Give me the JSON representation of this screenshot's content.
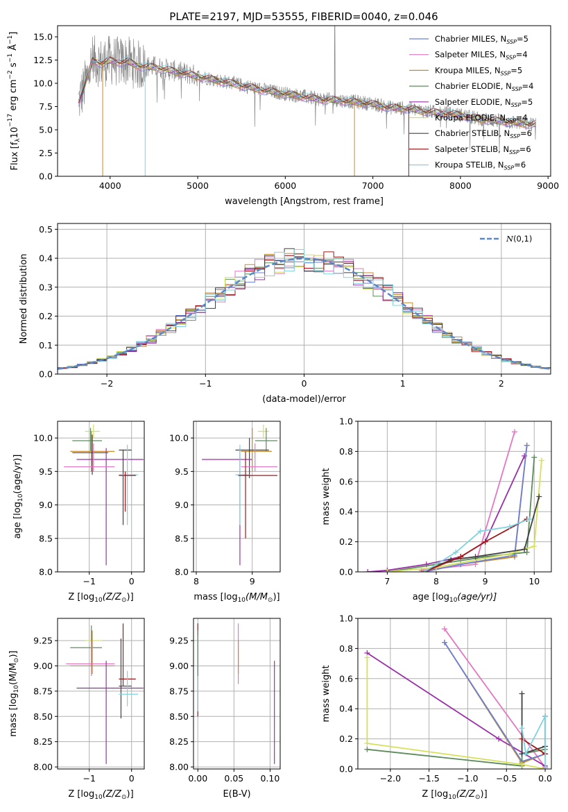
{
  "figure": {
    "title": "PLATE=2197, MJD=53555, FIBERID=0040, z=0.046"
  },
  "chart_data": [
    {
      "id": "spectrum",
      "type": "line",
      "title": "PLATE=2197, MJD=53555, FIBERID=0040, z=0.046",
      "xlabel": "wavelength [Angstrom, rest frame]",
      "ylabel_parts": [
        "Flux [f",
        "λ",
        "10",
        "−17",
        " erg cm",
        "−2",
        " s",
        "−1",
        " Å",
        "−1",
        "]"
      ],
      "xlim": [
        3400,
        9030
      ],
      "ylim": [
        0,
        16.2
      ],
      "xticks": [
        4000,
        5000,
        6000,
        7000,
        8000,
        9000
      ],
      "yticks": [
        0.0,
        2.5,
        5.0,
        7.5,
        10.0,
        12.5,
        15.0
      ],
      "grid": false,
      "legend_position": "upper-right",
      "observed": {
        "x": [
          3640,
          3700,
          3800,
          3900,
          4000,
          4100,
          4200,
          4300,
          4400,
          4500,
          4600,
          4700,
          4800,
          4900,
          5000,
          5200,
          5400,
          5600,
          5800,
          6000,
          6200,
          6400,
          6600,
          6800,
          7000,
          7200,
          7400,
          7600,
          7800,
          8000,
          8200,
          8400,
          8600,
          8800
        ],
        "y": [
          8.0,
          9.5,
          12.5,
          12.2,
          12.5,
          12.3,
          12.4,
          12.0,
          11.8,
          11.8,
          11.6,
          11.4,
          11.2,
          11.0,
          10.8,
          10.4,
          10.0,
          9.6,
          9.2,
          8.9,
          8.6,
          8.3,
          8.2,
          8.0,
          7.8,
          7.4,
          7.3,
          7.0,
          6.8,
          6.6,
          6.2,
          6.0,
          5.8,
          5.6
        ]
      },
      "series": [
        {
          "name": "Chabrier MILES, N",
          "sub": "SSP",
          "suffix": "=5",
          "color": "#6b7fd7"
        },
        {
          "name": "Salpeter MILES, N",
          "sub": "SSP",
          "suffix": "=4",
          "color": "#e377c2"
        },
        {
          "name": "Kroupa MILES, N",
          "sub": "SSP",
          "suffix": "=5",
          "color": "#c88a2a"
        },
        {
          "name": "Chabrier ELODIE, N",
          "sub": "SSP",
          "suffix": "=4",
          "color": "#5b8c5a"
        },
        {
          "name": "Salpeter ELODIE, N",
          "sub": "SSP",
          "suffix": "=5",
          "color": "#9b2ea8"
        },
        {
          "name": "Kroupa ELODIE, N",
          "sub": "SSP",
          "suffix": "=4",
          "color": "#d4e157"
        },
        {
          "name": "Chabrier STELIB, N",
          "sub": "SSP",
          "suffix": "=6",
          "color": "#404040"
        },
        {
          "name": "Salpeter STELIB, N",
          "sub": "SSP",
          "suffix": "=6",
          "color": "#a01818"
        },
        {
          "name": "Kroupa STELIB, N",
          "sub": "SSP",
          "suffix": "=6",
          "color": "#7fd3e0"
        }
      ]
    },
    {
      "id": "residuals",
      "type": "histogram",
      "xlabel": "(data-model)/error",
      "ylabel": "Normed distribution",
      "xlim": [
        -2.5,
        2.5
      ],
      "ylim": [
        0,
        0.52
      ],
      "xticks": [
        -2,
        -1,
        0,
        1,
        2
      ],
      "xticklabels": [
        "−2",
        "−1",
        "0",
        "1",
        "2"
      ],
      "yticks": [
        0.0,
        0.1,
        0.2,
        0.3,
        0.4,
        0.5
      ],
      "grid": true,
      "legend_position": "upper-right",
      "legend_label": "N(0,1)",
      "bin_width": 0.1,
      "colors": [
        "#6b7fd7",
        "#e377c2",
        "#c88a2a",
        "#5b8c5a",
        "#9b2ea8",
        "#d4e157",
        "#404040",
        "#a01818",
        "#7fd3e0"
      ]
    },
    {
      "id": "age-vs-Z",
      "type": "errorbar",
      "xlabel_parts": [
        "Z [log",
        "10",
        "(Z/Z",
        "⊙",
        ")]"
      ],
      "ylabel_parts": [
        "age  [log",
        "10",
        "(age/yr)]"
      ],
      "xlim": [
        -1.75,
        0.3
      ],
      "ylim": [
        8.0,
        10.25
      ],
      "xticks": [
        -1,
        0
      ],
      "xticklabels": [
        "−1",
        "0"
      ],
      "yticks": [
        8.0,
        8.5,
        9.0,
        9.5,
        10.0
      ],
      "grid": true,
      "points": [
        {
          "x": -0.9,
          "y": 10.1,
          "xlo": -1.1,
          "xhi": -0.75,
          "ylo": 10.0,
          "yhi": 10.2,
          "color": "#d4e157"
        },
        {
          "x": -0.97,
          "y": 9.96,
          "xlo": -1.4,
          "xhi": -0.7,
          "ylo": 9.8,
          "yhi": 10.15,
          "color": "#5b8c5a"
        },
        {
          "x": -0.95,
          "y": 9.8,
          "xlo": -1.45,
          "xhi": -0.4,
          "ylo": 9.5,
          "yhi": 10.1,
          "color": "#c88a2a"
        },
        {
          "x": -0.93,
          "y": 9.78,
          "xlo": -1.4,
          "xhi": -0.55,
          "ylo": 9.45,
          "yhi": 10.05,
          "color": "#404040"
        },
        {
          "x": -0.6,
          "y": 9.68,
          "xlo": -1.3,
          "xhi": 0.28,
          "ylo": 8.1,
          "yhi": 9.85,
          "color": "#9b2ea8"
        },
        {
          "x": -0.9,
          "y": 9.57,
          "xlo": -1.6,
          "xhi": -0.4,
          "ylo": 9.5,
          "yhi": 9.92,
          "color": "#e377c2"
        },
        {
          "x": -0.2,
          "y": 9.82,
          "xlo": -0.3,
          "xhi": 0.0,
          "ylo": 8.7,
          "yhi": 9.82,
          "color": "#404040"
        },
        {
          "x": -0.1,
          "y": 9.45,
          "xlo": -0.3,
          "xhi": 0.15,
          "ylo": 8.7,
          "yhi": 9.9,
          "color": "#7fd3e0"
        },
        {
          "x": -0.15,
          "y": 9.44,
          "xlo": -0.3,
          "xhi": 0.1,
          "ylo": 8.9,
          "yhi": 9.5,
          "color": "#a01818"
        }
      ]
    },
    {
      "id": "age-vs-mass",
      "type": "errorbar",
      "xlabel_parts": [
        "mass [log",
        "10",
        "(M/M",
        "⊙",
        ")]"
      ],
      "ylabel": "",
      "xlim": [
        7.95,
        9.5
      ],
      "ylim": [
        8.0,
        10.25
      ],
      "xticks": [
        8,
        9
      ],
      "yticks": [
        8.0,
        8.5,
        9.0,
        9.5,
        10.0
      ],
      "grid": true,
      "points": [
        {
          "x": 9.2,
          "y": 10.1,
          "xlo": 9.1,
          "xhi": 9.3,
          "ylo": 10.0,
          "yhi": 10.2,
          "color": "#d4e157"
        },
        {
          "x": 9.25,
          "y": 9.96,
          "xlo": 9.05,
          "xhi": 9.45,
          "ylo": 9.8,
          "yhi": 10.15,
          "color": "#5b8c5a"
        },
        {
          "x": 9.0,
          "y": 9.8,
          "xlo": 8.8,
          "xhi": 9.35,
          "ylo": 9.5,
          "yhi": 10.15,
          "color": "#c88a2a"
        },
        {
          "x": 8.95,
          "y": 9.82,
          "xlo": 8.7,
          "xhi": 9.3,
          "ylo": 9.4,
          "yhi": 10.0,
          "color": "#404040"
        },
        {
          "x": 8.78,
          "y": 9.68,
          "xlo": 8.1,
          "xhi": 9.0,
          "ylo": 8.1,
          "yhi": 9.85,
          "color": "#9b2ea8"
        },
        {
          "x": 9.05,
          "y": 9.57,
          "xlo": 8.8,
          "xhi": 9.45,
          "ylo": 9.5,
          "yhi": 9.92,
          "color": "#e377c2"
        },
        {
          "x": 8.78,
          "y": 9.45,
          "xlo": 8.7,
          "xhi": 8.95,
          "ylo": 8.7,
          "yhi": 9.9,
          "color": "#7fd3e0"
        },
        {
          "x": 8.88,
          "y": 9.44,
          "xlo": 8.75,
          "xhi": 9.45,
          "ylo": 8.5,
          "yhi": 9.8,
          "color": "#a01818"
        }
      ]
    },
    {
      "id": "weight-vs-age",
      "type": "line",
      "xlabel_parts": [
        "age  [log",
        "10",
        "(age/yr)]"
      ],
      "ylabel": "mass weight",
      "xlim": [
        6.4,
        10.35
      ],
      "ylim": [
        0,
        1.0
      ],
      "xticks": [
        7,
        8,
        9,
        10
      ],
      "yticks": [
        0.0,
        0.2,
        0.4,
        0.6,
        0.8,
        1.0
      ],
      "grid": true,
      "series": [
        {
          "color": "#e377c2",
          "x": [
            7.7,
            8.8,
            9.6
          ],
          "y": [
            0.01,
            0.05,
            0.93
          ]
        },
        {
          "color": "#9b2ea8",
          "x": [
            6.6,
            7.0,
            7.8,
            8.5,
            9.0,
            9.8
          ],
          "y": [
            0.0,
            0.01,
            0.05,
            0.1,
            0.2,
            0.77
          ]
        },
        {
          "color": "#c88a2a",
          "x": [
            7.7,
            8.5,
            9.6,
            9.85
          ],
          "y": [
            0.0,
            0.05,
            0.1,
            0.84
          ]
        },
        {
          "color": "#6b7fd7",
          "x": [
            7.75,
            8.5,
            9.6,
            9.85
          ],
          "y": [
            0.0,
            0.05,
            0.11,
            0.84
          ]
        },
        {
          "color": "#5b8c5a",
          "x": [
            7.0,
            8.0,
            9.0,
            9.85,
            10.0
          ],
          "y": [
            0.0,
            0.05,
            0.1,
            0.13,
            0.76
          ]
        },
        {
          "color": "#d4e157",
          "x": [
            7.0,
            8.0,
            9.5,
            10.0,
            10.15
          ],
          "y": [
            0.0,
            0.03,
            0.12,
            0.17,
            0.74
          ]
        },
        {
          "color": "#404040",
          "x": [
            7.75,
            8.3,
            8.8,
            9.8,
            10.1
          ],
          "y": [
            0.0,
            0.08,
            0.1,
            0.15,
            0.5
          ]
        },
        {
          "color": "#a01818",
          "x": [
            7.75,
            8.5,
            9.0,
            9.85
          ],
          "y": [
            0.0,
            0.1,
            0.2,
            0.35
          ]
        },
        {
          "color": "#7fd3e0",
          "x": [
            7.75,
            8.4,
            8.9,
            9.5,
            9.9
          ],
          "y": [
            0.0,
            0.13,
            0.27,
            0.3,
            0.35
          ]
        }
      ]
    },
    {
      "id": "mass-vs-Z",
      "type": "errorbar",
      "xlabel_parts": [
        "Z [log",
        "10",
        "(Z/Z",
        "⊙",
        ")]"
      ],
      "ylabel_parts": [
        "mass [log",
        "10",
        "(M/M",
        "⊙",
        ")]"
      ],
      "xlim": [
        -1.75,
        0.3
      ],
      "ylim": [
        7.98,
        9.47
      ],
      "xticks": [
        -1,
        0
      ],
      "xticklabels": [
        "−1",
        "0"
      ],
      "yticks": [
        8.0,
        8.25,
        8.5,
        8.75,
        9.0,
        9.25
      ],
      "grid": true,
      "points": [
        {
          "x": -0.95,
          "y": 9.25,
          "xlo": -1.1,
          "xhi": -0.7,
          "ylo": 9.1,
          "yhi": 9.35,
          "color": "#d4e157"
        },
        {
          "x": -0.95,
          "y": 9.18,
          "xlo": -1.45,
          "xhi": -0.7,
          "ylo": 9.0,
          "yhi": 9.4,
          "color": "#5b8c5a"
        },
        {
          "x": -0.95,
          "y": 9.02,
          "xlo": -1.55,
          "xhi": -0.4,
          "ylo": 8.9,
          "yhi": 9.25,
          "color": "#e377c2"
        },
        {
          "x": -0.93,
          "y": 9.0,
          "xlo": -1.45,
          "xhi": -0.4,
          "ylo": 8.92,
          "yhi": 9.35,
          "color": "#c88a2a"
        },
        {
          "x": -0.6,
          "y": 8.78,
          "xlo": -1.3,
          "xhi": 0.28,
          "ylo": 8.03,
          "yhi": 9.05,
          "color": "#9b2ea8"
        },
        {
          "x": -0.2,
          "y": 8.87,
          "xlo": -0.3,
          "xhi": 0.1,
          "ylo": 8.8,
          "yhi": 9.42,
          "color": "#a01818"
        },
        {
          "x": -0.25,
          "y": 8.8,
          "xlo": -0.3,
          "xhi": 0.0,
          "ylo": 8.48,
          "yhi": 9.27,
          "color": "#404040"
        },
        {
          "x": -0.1,
          "y": 8.72,
          "xlo": -0.3,
          "xhi": 0.15,
          "ylo": 8.6,
          "yhi": 8.95,
          "color": "#7fd3e0"
        }
      ]
    },
    {
      "id": "mass-vs-EBV",
      "type": "errorbar",
      "xlabel": "E(B-V)",
      "ylabel": "",
      "xlim": [
        -0.006,
        0.114
      ],
      "ylim": [
        7.98,
        9.47
      ],
      "xticks": [
        0.0,
        0.05,
        0.1
      ],
      "xticklabels": [
        "0.00",
        "0.05",
        "0.10"
      ],
      "yticks": [
        8.0,
        8.25,
        8.5,
        8.75,
        9.0,
        9.25
      ],
      "grid": true,
      "points": [
        {
          "x": 0.0,
          "y": 9.2,
          "ylo": 8.5,
          "yhi": 9.42,
          "color": "#a01818"
        },
        {
          "x": 0.0,
          "y": 9.0,
          "ylo": 8.55,
          "yhi": 9.3,
          "color": "#7fd3e0"
        },
        {
          "x": 0.0,
          "y": 9.1,
          "ylo": 8.9,
          "yhi": 9.35,
          "color": "#5b8c5a"
        },
        {
          "x": 0.056,
          "y": 9.0,
          "ylo": 8.82,
          "yhi": 9.42,
          "color": "#e377c2"
        },
        {
          "x": 0.056,
          "y": 9.02,
          "ylo": 8.92,
          "yhi": 9.25,
          "color": "#c88a2a"
        },
        {
          "x": 0.106,
          "y": 8.78,
          "ylo": 8.03,
          "yhi": 9.05,
          "color": "#9b2ea8"
        }
      ]
    },
    {
      "id": "weight-vs-Z",
      "type": "line",
      "xlabel_parts": [
        "Z [log",
        "10",
        "(Z/Z",
        "⊙",
        ")]"
      ],
      "ylabel": "mass weight",
      "xlim": [
        -2.42,
        0.08
      ],
      "ylim": [
        0,
        1.0
      ],
      "xticks": [
        -2.0,
        -1.5,
        -1.0,
        -0.5,
        0.0
      ],
      "xticklabels": [
        "−2.0",
        "−1.5",
        "−1.0",
        "−0.5",
        "0.0"
      ],
      "yticks": [
        0.0,
        0.2,
        0.4,
        0.6,
        0.8,
        1.0
      ],
      "grid": true,
      "series": [
        {
          "color": "#e377c2",
          "x": [
            -1.3,
            0.0
          ],
          "y": [
            0.93,
            0.01
          ]
        },
        {
          "color": "#9b2ea8",
          "x": [
            -2.3,
            -0.6,
            0.0
          ],
          "y": [
            0.77,
            0.2,
            0.02
          ]
        },
        {
          "color": "#c88a2a",
          "x": [
            -1.3,
            -0.3,
            0.0
          ],
          "y": [
            0.84,
            0.04,
            0.1
          ]
        },
        {
          "color": "#6b7fd7",
          "x": [
            -1.3,
            -0.3,
            0.0
          ],
          "y": [
            0.84,
            0.05,
            0.1
          ]
        },
        {
          "color": "#5b8c5a",
          "x": [
            -2.3,
            -0.3,
            -0.3,
            0.0
          ],
          "y": [
            0.13,
            0.02,
            0.1,
            0.13
          ]
        },
        {
          "color": "#d4e157",
          "x": [
            -2.3,
            -2.3,
            -0.3,
            0.0
          ],
          "y": [
            0.74,
            0.17,
            0.03,
            0.0
          ]
        },
        {
          "color": "#404040",
          "x": [
            -0.3,
            -0.3,
            0.0,
            0.0
          ],
          "y": [
            0.5,
            0.1,
            0.15,
            0.1
          ]
        },
        {
          "color": "#a01818",
          "x": [
            -0.3,
            0.0,
            0.0
          ],
          "y": [
            0.2,
            0.1,
            0.35
          ]
        },
        {
          "color": "#7fd3e0",
          "x": [
            -0.3,
            -0.25,
            0.0,
            0.0
          ],
          "y": [
            0.27,
            0.1,
            0.35,
            0.0
          ]
        }
      ]
    }
  ]
}
